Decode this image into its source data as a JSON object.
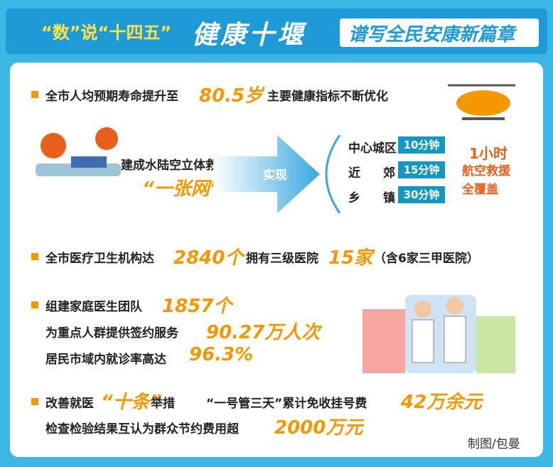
{
  "header": {
    "tag": "“数”说“十四五”",
    "title": "健康十堰",
    "subtitle": "谱写全民安康新篇章"
  },
  "life": {
    "text": "全市人均预期寿命提升至",
    "highlight": "80.5岁",
    "tail": "主要健康指标不断优化"
  },
  "rescue": {
    "line1": "建成水陆空立体救援",
    "line2": "“一张网”",
    "arrow": "实现",
    "rows": [
      [
        "中心城区",
        "10分钟"
      ],
      [
        "近　郊",
        "15分钟"
      ],
      [
        "乡　镇",
        "30分钟"
      ]
    ],
    "air": [
      "1小时",
      "航空救援",
      "全覆盖"
    ]
  },
  "institutions": {
    "text": "全市医疗卫生机构达",
    "count": "2840个",
    "text2": "拥有三级医院",
    "hospitals": "15家",
    "note": "（含6家三甲医院）"
  },
  "family": {
    "lines": [
      [
        "组建家庭医生团队",
        "1857个"
      ],
      [
        "为重点人群提供签约服务",
        "90.27万人次"
      ],
      [
        "居民市域内就诊率高达",
        "96.3%"
      ]
    ]
  },
  "reform": {
    "text": "改善就医",
    "ten": "“十条”",
    "text2": "举措",
    "text3": "“一号管三天”累计免收挂号费",
    "fee": "42万余元",
    "line2": "检查检验结果互认为群众节约费用超",
    "saving": "2000万元"
  },
  "credit": "制图/包曼"
}
